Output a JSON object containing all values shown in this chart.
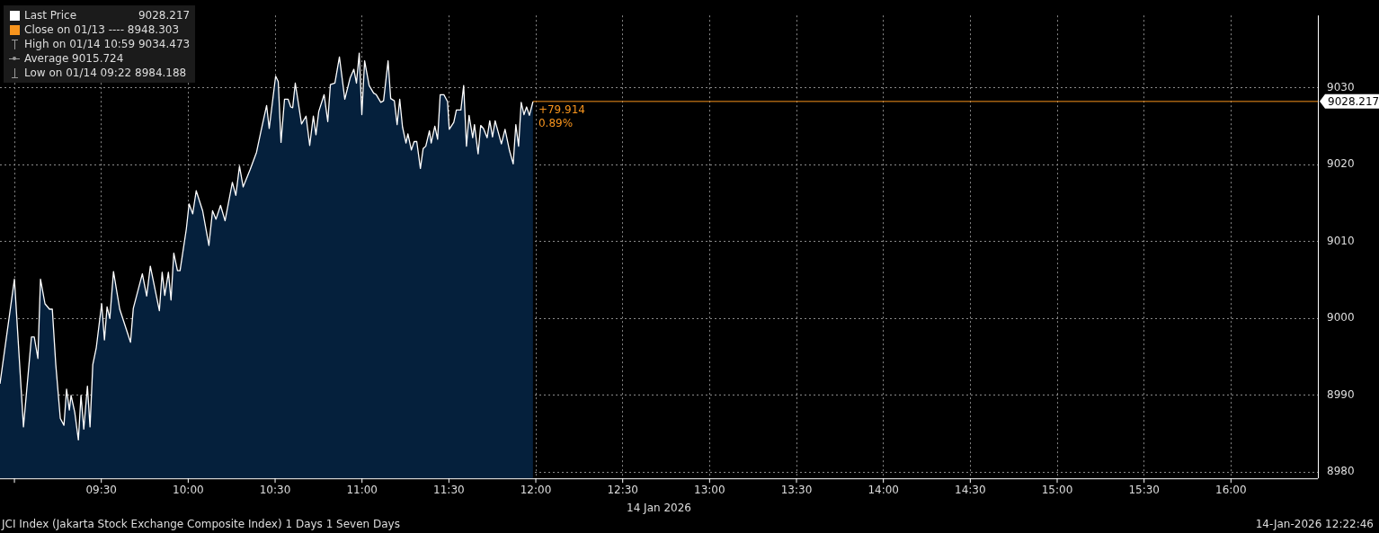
{
  "chart_data": {
    "type": "area",
    "xlabel": "14 Jan 2026",
    "x": [
      8.917,
      9.0,
      9.052,
      9.098,
      9.114,
      9.135,
      9.15,
      9.176,
      9.202,
      9.218,
      9.238,
      9.264,
      9.285,
      9.3,
      9.316,
      9.326,
      9.347,
      9.368,
      9.383,
      9.399,
      9.42,
      9.435,
      9.451,
      9.471,
      9.502,
      9.518,
      9.533,
      9.549,
      9.57,
      9.606,
      9.668,
      9.684,
      9.736,
      9.761,
      9.782,
      9.834,
      9.85,
      9.865,
      9.886,
      9.901,
      9.917,
      9.938,
      9.953,
      9.989,
      10.005,
      10.026,
      10.046,
      10.083,
      10.119,
      10.14,
      10.16,
      10.186,
      10.212,
      10.254,
      10.274,
      10.295,
      10.316,
      10.357,
      10.393,
      10.419,
      10.451,
      10.466,
      10.503,
      10.518,
      10.534,
      10.554,
      10.575,
      10.59,
      10.601,
      10.616,
      10.652,
      10.678,
      10.699,
      10.72,
      10.735,
      10.751,
      10.782,
      10.803,
      10.818,
      10.844,
      10.87,
      10.901,
      10.932,
      10.953,
      10.968,
      10.984,
      10.999,
      11.015,
      11.041,
      11.067,
      11.082,
      11.108,
      11.124,
      11.15,
      11.165,
      11.186,
      11.202,
      11.217,
      11.233,
      11.253,
      11.264,
      11.284,
      11.3,
      11.315,
      11.336,
      11.352,
      11.367,
      11.388,
      11.398,
      11.419,
      11.435,
      11.45,
      11.471,
      11.492,
      11.502,
      11.528,
      11.543,
      11.569,
      11.585,
      11.601,
      11.616,
      11.637,
      11.647,
      11.668,
      11.683,
      11.699,
      11.72,
      11.735,
      11.751,
      11.766,
      11.802,
      11.823,
      11.849,
      11.87,
      11.885,
      11.901,
      11.916,
      11.932,
      11.947,
      11.963,
      11.984
    ],
    "series": [
      {
        "name": "Last Price",
        "color": "#ffffff",
        "values": [
          8991.5,
          9005.1,
          8985.9,
          8997.6,
          8997.6,
          8994.8,
          9005.1,
          9001.9,
          9001.2,
          9001.2,
          8994.0,
          8987.0,
          8986.1,
          8990.8,
          8988.1,
          8990.0,
          8987.8,
          8984.2,
          8990.0,
          8985.6,
          8991.2,
          8985.9,
          8994.0,
          8996.2,
          9001.9,
          8997.2,
          9001.5,
          9000.0,
          9006.1,
          9001.2,
          8996.9,
          9001.3,
          9005.8,
          9002.9,
          9006.8,
          9001.0,
          9006.0,
          9003.0,
          9006.0,
          9002.4,
          9008.5,
          9006.2,
          9006.2,
          9011.6,
          9014.9,
          9013.6,
          9016.6,
          9014.0,
          9009.5,
          9014.0,
          9012.9,
          9014.7,
          9012.7,
          9017.7,
          9016.0,
          9019.8,
          9017.1,
          9019.4,
          9021.6,
          9024.4,
          9027.7,
          9024.7,
          9031.5,
          9030.8,
          9022.9,
          9028.5,
          9028.5,
          9027.5,
          9027.4,
          9030.6,
          9025.3,
          9026.3,
          9022.5,
          9026.3,
          9023.9,
          9026.9,
          9029.1,
          9025.6,
          9030.4,
          9030.6,
          9034.0,
          9028.5,
          9031.3,
          9032.4,
          9030.6,
          9034.5,
          9026.5,
          9033.5,
          9030.3,
          9029.3,
          9029.1,
          9028.1,
          9028.3,
          9033.5,
          9028.6,
          9028.3,
          9025.2,
          9028.5,
          9024.9,
          9022.8,
          9024.0,
          9021.9,
          9023.0,
          9023.0,
          9019.5,
          9022.1,
          9022.4,
          9024.4,
          9022.8,
          9025.0,
          9023.3,
          9029.1,
          9029.1,
          9028.2,
          9024.6,
          9025.5,
          9027.1,
          9027.1,
          9030.3,
          9022.4,
          9026.4,
          9023.5,
          9025.2,
          9021.4,
          9025.1,
          9024.7,
          9023.5,
          9025.7,
          9023.6,
          9025.7,
          9022.7,
          9024.6,
          9021.8,
          9020.1,
          9025.2,
          9022.4,
          9028.1,
          9026.5,
          9027.5,
          9026.4,
          9028.2
        ]
      }
    ],
    "xlim": [
      8.917,
      16.5
    ],
    "xticks": [
      {
        "value": 9,
        "label": null
      },
      {
        "value": 9.5,
        "label": "09:30"
      },
      {
        "value": 10,
        "label": "10:00"
      },
      {
        "value": 10.5,
        "label": "10:30"
      },
      {
        "value": 11,
        "label": "11:00"
      },
      {
        "value": 11.5,
        "label": "11:30"
      },
      {
        "value": 12,
        "label": "12:00"
      },
      {
        "value": 12.5,
        "label": "12:30"
      },
      {
        "value": 13,
        "label": "13:00"
      },
      {
        "value": 13.5,
        "label": "13:30"
      },
      {
        "value": 14,
        "label": "14:00"
      },
      {
        "value": 14.5,
        "label": "14:30"
      },
      {
        "value": 15,
        "label": "15:00"
      },
      {
        "value": 15.5,
        "label": "15:30"
      },
      {
        "value": 16,
        "label": "16:00"
      }
    ],
    "ylim": [
      8979.2,
      9039.4
    ],
    "yticks": [
      8980,
      8990,
      9000,
      9010,
      9020,
      9030
    ],
    "ref_lines": [
      {
        "axis": "y",
        "value": 9028.217,
        "label": "9028.217",
        "color": "#f7941d"
      }
    ],
    "annotations": [
      "9028.217",
      "Close on 01/13 ---- 8948.303",
      "High on 01/14 10:59 9034.473",
      "Average 9015.724",
      "Low on 01/14 09:22 8984.188",
      "JCI Index (Jakarta Stock Exchange Composite Index) 1 Days 1 Seven Days",
      "14-Jan-2026 12:22:46",
      {
        "text": "+79.914",
        "x": 11.984,
        "y": 9028.217
      },
      {
        "text": "0.89%",
        "x": 11.984,
        "y": 9028.217
      }
    ],
    "grid": true,
    "legend": "top left",
    "marker": "none",
    "line_style": "solid"
  }
}
